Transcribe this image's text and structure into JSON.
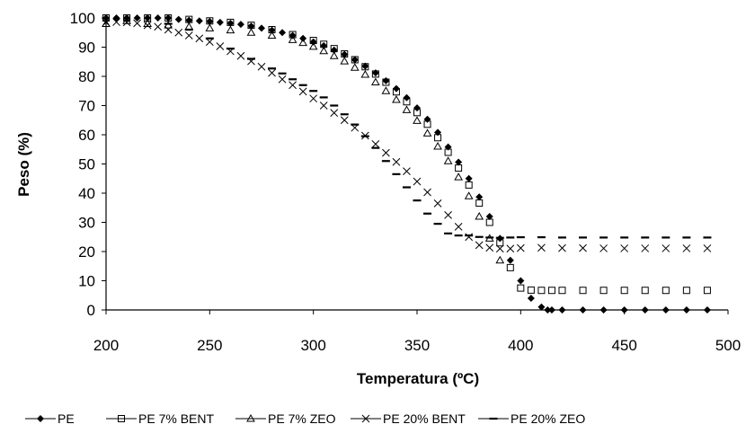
{
  "chart_data": {
    "type": "scatter",
    "xlabel": "Temperatura (ºC)",
    "ylabel": "Peso (%)",
    "xlim": [
      200,
      500
    ],
    "ylim": [
      0,
      100
    ],
    "xticks": [
      200,
      250,
      300,
      350,
      400,
      450,
      500
    ],
    "yticks": [
      0,
      10,
      20,
      30,
      40,
      50,
      60,
      70,
      80,
      90,
      100
    ],
    "grid": false,
    "legend_position": "bottom",
    "colors": {
      "series": "#000000",
      "axis": "#000000"
    },
    "series": [
      {
        "name": "PE",
        "marker": "diamond-filled",
        "x": [
          200,
          205,
          210,
          215,
          220,
          225,
          230,
          235,
          240,
          245,
          250,
          255,
          260,
          265,
          270,
          275,
          280,
          285,
          290,
          295,
          300,
          305,
          310,
          315,
          320,
          325,
          330,
          335,
          340,
          345,
          350,
          355,
          360,
          365,
          370,
          375,
          380,
          385,
          390,
          395,
          400,
          405,
          410,
          413,
          415,
          420,
          430,
          440,
          450,
          460,
          470,
          480,
          490
        ],
        "y": [
          100,
          100,
          100,
          100,
          100,
          100,
          100,
          99.5,
          99.2,
          99,
          98.8,
          98.5,
          98.2,
          97.8,
          97.2,
          96.5,
          95.8,
          95,
          94,
          93,
          91.8,
          90.5,
          89,
          87.5,
          85.7,
          83.5,
          81.2,
          78.5,
          75.8,
          72.7,
          69.2,
          65.3,
          60.8,
          55.8,
          50.6,
          45,
          38.7,
          32,
          24.5,
          17,
          10,
          4,
          1,
          0,
          0,
          0,
          0,
          0,
          0,
          0,
          0,
          0,
          0
        ]
      },
      {
        "name": "PE 7% BENT",
        "marker": "square-open",
        "x": [
          200,
          210,
          220,
          230,
          240,
          250,
          260,
          270,
          280,
          290,
          300,
          305,
          310,
          315,
          320,
          325,
          330,
          335,
          340,
          345,
          350,
          355,
          360,
          365,
          370,
          375,
          380,
          385,
          390,
          395,
          400,
          405,
          410,
          415,
          420,
          430,
          440,
          450,
          460,
          470,
          480,
          490
        ],
        "y": [
          100,
          100,
          100,
          100,
          99.5,
          99,
          98.5,
          97.5,
          96,
          94.3,
          92.3,
          91,
          89.5,
          87.7,
          85.7,
          83.3,
          80.8,
          78,
          74.7,
          71.3,
          67.6,
          63.6,
          59,
          54,
          48.6,
          42.8,
          36.6,
          30,
          23,
          14.5,
          7.5,
          6.8,
          6.7,
          6.7,
          6.7,
          6.7,
          6.7,
          6.7,
          6.7,
          6.7,
          6.7,
          6.7
        ]
      },
      {
        "name": "PE 7% ZEO",
        "marker": "triangle-open",
        "x": [
          200,
          210,
          220,
          230,
          240,
          250,
          260,
          270,
          280,
          290,
          295,
          300,
          305,
          310,
          315,
          320,
          325,
          330,
          335,
          340,
          345,
          350,
          355,
          360,
          365,
          370,
          375,
          380,
          385,
          390
        ],
        "y": [
          98,
          99,
          98,
          97.5,
          97,
          96.5,
          95.8,
          95,
          94,
          92.5,
          91.5,
          90.2,
          88.7,
          87,
          85.2,
          83,
          80.6,
          78,
          75,
          72,
          68.5,
          64.8,
          60.5,
          56,
          51,
          45.5,
          39,
          32,
          24.5,
          17
        ]
      },
      {
        "name": "PE 20% BENT",
        "marker": "x",
        "x": [
          200,
          205,
          210,
          215,
          220,
          225,
          230,
          235,
          240,
          245,
          250,
          255,
          260,
          265,
          270,
          275,
          280,
          285,
          290,
          295,
          300,
          305,
          310,
          315,
          320,
          325,
          330,
          335,
          340,
          345,
          350,
          355,
          360,
          365,
          370,
          375,
          380,
          385,
          390,
          395,
          400,
          410,
          420,
          430,
          440,
          450,
          460,
          470,
          480,
          490
        ],
        "y": [
          98.5,
          98.6,
          98.5,
          98.2,
          97.5,
          97,
          96,
          95,
          94,
          93,
          91.8,
          90.3,
          88.6,
          87,
          85.2,
          83.3,
          81.2,
          79,
          77,
          74.8,
          72.4,
          70,
          67.5,
          65,
          62.4,
          59.7,
          56.8,
          53.8,
          50.7,
          47.5,
          44,
          40.3,
          36.5,
          32.5,
          28.5,
          25,
          22.2,
          21.3,
          21,
          21,
          21.2,
          21.3,
          21.2,
          21.2,
          21.1,
          21.1,
          21.1,
          21.1,
          21.1,
          21.1
        ]
      },
      {
        "name": "PE 20% ZEO",
        "marker": "dash",
        "x": [
          230,
          240,
          250,
          260,
          270,
          280,
          285,
          290,
          295,
          300,
          305,
          310,
          315,
          320,
          325,
          330,
          335,
          340,
          345,
          350,
          355,
          360,
          365,
          370,
          375,
          380,
          385,
          390,
          395,
          400,
          410,
          420,
          430,
          440,
          450,
          460,
          470,
          480,
          490
        ],
        "y": [
          98,
          96,
          93,
          89.5,
          86,
          82.7,
          81,
          79,
          77,
          75,
          72.8,
          70,
          67,
          63.5,
          59.5,
          55.5,
          51,
          46.5,
          42,
          37.5,
          33,
          29.5,
          26.2,
          25.5,
          25.5,
          25,
          24.8,
          24.7,
          24.8,
          24.9,
          24.9,
          24.8,
          24.8,
          24.8,
          24.8,
          24.8,
          24.8,
          24.8,
          24.8
        ]
      }
    ]
  }
}
